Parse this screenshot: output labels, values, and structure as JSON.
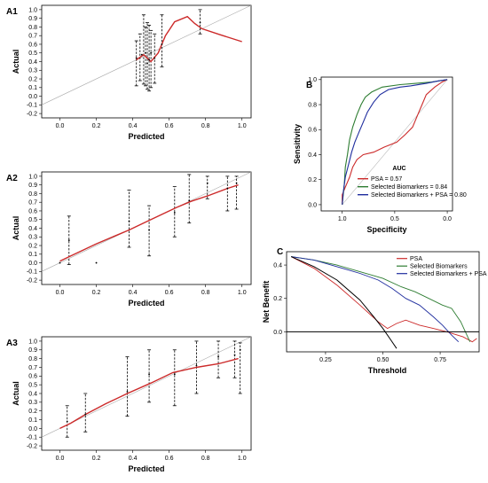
{
  "chart_data": [
    {
      "id": "A1",
      "type": "line",
      "panel_label": "A1",
      "xlabel": "Predicted",
      "ylabel": "Actual",
      "xlim": [
        -0.1,
        1.05
      ],
      "ylim": [
        -0.25,
        1.05
      ],
      "xticks": [
        "0.0",
        "0.2",
        "0.4",
        "0.6",
        "0.8",
        "1.0"
      ],
      "yticks": [
        "-0.2",
        "-0.1",
        "0.0",
        "0.1",
        "0.2",
        "0.3",
        "0.4",
        "0.5",
        "0.6",
        "0.7",
        "0.8",
        "0.9",
        "1.0"
      ],
      "reference_line": [
        [
          -0.1,
          -0.1
        ],
        [
          1.05,
          1.05
        ]
      ],
      "calibration_curve": [
        [
          0.42,
          0.42
        ],
        [
          0.46,
          0.48
        ],
        [
          0.5,
          0.4
        ],
        [
          0.54,
          0.5
        ],
        [
          0.58,
          0.7
        ],
        [
          0.63,
          0.86
        ],
        [
          0.7,
          0.92
        ],
        [
          0.74,
          0.84
        ],
        [
          0.78,
          0.78
        ],
        [
          0.88,
          0.71
        ],
        [
          1.0,
          0.63
        ]
      ],
      "points": [
        [
          0.42,
          0.44
        ],
        [
          0.45,
          0.48
        ],
        [
          0.47,
          0.5
        ],
        [
          0.48,
          0.38
        ],
        [
          0.49,
          0.42
        ],
        [
          0.5,
          0.5
        ],
        [
          0.52,
          0.44
        ],
        [
          0.56,
          0.6
        ],
        [
          0.77,
          0.85
        ]
      ],
      "error_bars": [
        [
          0.42,
          0.12,
          0.64
        ],
        [
          0.44,
          0.18,
          0.72
        ],
        [
          0.46,
          0.14,
          0.94
        ],
        [
          0.47,
          0.12,
          0.8
        ],
        [
          0.48,
          0.08,
          0.85
        ],
        [
          0.49,
          0.06,
          0.82
        ],
        [
          0.5,
          0.1,
          0.76
        ],
        [
          0.52,
          0.15,
          0.72
        ],
        [
          0.56,
          0.34,
          0.94
        ],
        [
          0.77,
          0.72,
          1.0
        ]
      ]
    },
    {
      "id": "A2",
      "type": "line",
      "panel_label": "A2",
      "xlabel": "Predicted",
      "ylabel": "Actual",
      "xlim": [
        -0.1,
        1.05
      ],
      "ylim": [
        -0.25,
        1.05
      ],
      "xticks": [
        "0.0",
        "0.2",
        "0.4",
        "0.6",
        "0.8",
        "1.0"
      ],
      "yticks": [
        "-0.2",
        "-0.1",
        "0.0",
        "0.1",
        "0.2",
        "0.3",
        "0.4",
        "0.5",
        "0.6",
        "0.7",
        "0.8",
        "0.9",
        "1.0"
      ],
      "reference_line": [
        [
          -0.1,
          -0.1
        ],
        [
          1.05,
          1.05
        ]
      ],
      "calibration_curve": [
        [
          0.0,
          0.02
        ],
        [
          0.06,
          0.08
        ],
        [
          0.2,
          0.22
        ],
        [
          0.38,
          0.38
        ],
        [
          0.5,
          0.5
        ],
        [
          0.64,
          0.64
        ],
        [
          0.72,
          0.71
        ],
        [
          0.82,
          0.78
        ],
        [
          0.92,
          0.86
        ],
        [
          0.98,
          0.9
        ]
      ],
      "points": [
        [
          0.0,
          0.0
        ],
        [
          0.05,
          0.26
        ],
        [
          0.2,
          0.0
        ],
        [
          0.38,
          0.48
        ],
        [
          0.49,
          0.38
        ],
        [
          0.63,
          0.58
        ],
        [
          0.71,
          0.72
        ],
        [
          0.81,
          0.92
        ],
        [
          0.92,
          0.86
        ],
        [
          0.97,
          0.92
        ]
      ],
      "error_bars": [
        [
          0.05,
          -0.02,
          0.54
        ],
        [
          0.38,
          0.18,
          0.84
        ],
        [
          0.49,
          0.08,
          0.66
        ],
        [
          0.63,
          0.3,
          0.88
        ],
        [
          0.71,
          0.46,
          1.02
        ],
        [
          0.81,
          0.74,
          1.0
        ],
        [
          0.92,
          0.6,
          1.0
        ],
        [
          0.97,
          0.62,
          1.0
        ]
      ]
    },
    {
      "id": "A3",
      "type": "line",
      "panel_label": "A3",
      "xlabel": "Predicted",
      "ylabel": "Actual",
      "xlim": [
        -0.1,
        1.05
      ],
      "ylim": [
        -0.25,
        1.05
      ],
      "xticks": [
        "0.0",
        "0.2",
        "0.4",
        "0.6",
        "0.8",
        "1.0"
      ],
      "yticks": [
        "-0.2",
        "-0.1",
        "0.0",
        "0.1",
        "0.2",
        "0.3",
        "0.4",
        "0.5",
        "0.6",
        "0.7",
        "0.8",
        "0.9",
        "1.0"
      ],
      "reference_line": [
        [
          -0.1,
          -0.1
        ],
        [
          1.05,
          1.05
        ]
      ],
      "calibration_curve": [
        [
          0.0,
          0.0
        ],
        [
          0.06,
          0.06
        ],
        [
          0.14,
          0.16
        ],
        [
          0.25,
          0.28
        ],
        [
          0.37,
          0.4
        ],
        [
          0.5,
          0.52
        ],
        [
          0.62,
          0.64
        ],
        [
          0.75,
          0.7
        ],
        [
          0.87,
          0.74
        ],
        [
          0.98,
          0.8
        ]
      ],
      "points": [
        [
          0.04,
          0.08
        ],
        [
          0.14,
          0.16
        ],
        [
          0.37,
          0.42
        ],
        [
          0.49,
          0.62
        ],
        [
          0.63,
          0.62
        ],
        [
          0.75,
          0.72
        ],
        [
          0.87,
          0.82
        ],
        [
          0.96,
          0.84
        ],
        [
          0.99,
          0.9
        ]
      ],
      "error_bars": [
        [
          0.04,
          -0.1,
          0.26
        ],
        [
          0.14,
          -0.04,
          0.4
        ],
        [
          0.37,
          0.14,
          0.82
        ],
        [
          0.49,
          0.3,
          0.9
        ],
        [
          0.63,
          0.26,
          0.9
        ],
        [
          0.75,
          0.4,
          1.0
        ],
        [
          0.87,
          0.58,
          1.0
        ],
        [
          0.96,
          0.58,
          1.0
        ],
        [
          0.99,
          0.4,
          0.98
        ]
      ]
    },
    {
      "id": "B",
      "type": "line",
      "panel_label": "B",
      "xlabel": "Specificity",
      "ylabel": "Sensitivity",
      "xlim": [
        1.2,
        -0.05
      ],
      "ylim": [
        -0.05,
        1.02
      ],
      "xticks": [
        "1.0",
        "0.5",
        "0.0"
      ],
      "yticks": [
        "0.0",
        "0.2",
        "0.4",
        "0.6",
        "0.8",
        "1.0"
      ],
      "reference_line": [
        [
          1.0,
          0.0
        ],
        [
          0.0,
          1.0
        ]
      ],
      "legend": {
        "title": "AUC",
        "placement": "bottom-right",
        "entries": [
          "PSA = 0.57",
          "Selected Biomarkers = 0.84",
          "Selected Biomarkers + PSA = 0.80"
        ]
      },
      "series": [
        {
          "name": "PSA = 0.57",
          "color": "#cc2a2a",
          "points": [
            [
              1.0,
              0.0
            ],
            [
              1.0,
              0.08
            ],
            [
              0.97,
              0.14
            ],
            [
              0.93,
              0.22
            ],
            [
              0.9,
              0.3
            ],
            [
              0.86,
              0.36
            ],
            [
              0.8,
              0.4
            ],
            [
              0.7,
              0.42
            ],
            [
              0.6,
              0.46
            ],
            [
              0.48,
              0.5
            ],
            [
              0.4,
              0.56
            ],
            [
              0.33,
              0.62
            ],
            [
              0.28,
              0.72
            ],
            [
              0.24,
              0.8
            ],
            [
              0.2,
              0.88
            ],
            [
              0.12,
              0.94
            ],
            [
              0.05,
              0.98
            ],
            [
              0.0,
              1.0
            ]
          ]
        },
        {
          "name": "Selected Biomarkers = 0.84",
          "color": "#2e7d32",
          "points": [
            [
              1.0,
              0.0
            ],
            [
              0.98,
              0.16
            ],
            [
              0.97,
              0.3
            ],
            [
              0.95,
              0.4
            ],
            [
              0.93,
              0.52
            ],
            [
              0.9,
              0.62
            ],
            [
              0.86,
              0.72
            ],
            [
              0.82,
              0.8
            ],
            [
              0.78,
              0.86
            ],
            [
              0.72,
              0.9
            ],
            [
              0.62,
              0.94
            ],
            [
              0.45,
              0.96
            ],
            [
              0.3,
              0.97
            ],
            [
              0.15,
              0.98
            ],
            [
              0.0,
              1.0
            ]
          ]
        },
        {
          "name": "Selected Biomarkers + PSA = 0.80",
          "color": "#1f2d9e",
          "points": [
            [
              1.0,
              0.0
            ],
            [
              0.99,
              0.1
            ],
            [
              0.97,
              0.22
            ],
            [
              0.94,
              0.32
            ],
            [
              0.91,
              0.42
            ],
            [
              0.88,
              0.5
            ],
            [
              0.84,
              0.58
            ],
            [
              0.8,
              0.66
            ],
            [
              0.76,
              0.74
            ],
            [
              0.7,
              0.82
            ],
            [
              0.64,
              0.88
            ],
            [
              0.56,
              0.92
            ],
            [
              0.45,
              0.94
            ],
            [
              0.35,
              0.95
            ],
            [
              0.2,
              0.97
            ],
            [
              0.08,
              0.99
            ],
            [
              0.0,
              1.0
            ]
          ]
        }
      ]
    },
    {
      "id": "C",
      "type": "line",
      "panel_label": "C",
      "xlabel": "Threshold",
      "ylabel": "Net Benefit",
      "xlim": [
        0.08,
        0.92
      ],
      "ylim": [
        -0.12,
        0.48
      ],
      "xticks": [
        "0.25",
        "0.50",
        "0.75"
      ],
      "yticks": [
        "0.0",
        "0.2",
        "0.4"
      ],
      "legend": {
        "placement": "top-right",
        "entries": [
          "PSA",
          "Selected Biomarkers",
          "Selected Biomarkers + PSA"
        ]
      },
      "series": [
        {
          "name": "PSA",
          "color": "#cc2a2a",
          "points": [
            [
              0.1,
              0.45
            ],
            [
              0.2,
              0.38
            ],
            [
              0.3,
              0.28
            ],
            [
              0.4,
              0.16
            ],
            [
              0.48,
              0.06
            ],
            [
              0.52,
              0.02
            ],
            [
              0.56,
              0.05
            ],
            [
              0.6,
              0.07
            ],
            [
              0.66,
              0.04
            ],
            [
              0.72,
              0.02
            ],
            [
              0.78,
              0.0
            ],
            [
              0.85,
              -0.03
            ],
            [
              0.89,
              -0.06
            ],
            [
              0.91,
              -0.04
            ]
          ]
        },
        {
          "name": "Selected Biomarkers",
          "color": "#2e7d32",
          "points": [
            [
              0.1,
              0.45
            ],
            [
              0.2,
              0.43
            ],
            [
              0.3,
              0.4
            ],
            [
              0.4,
              0.36
            ],
            [
              0.5,
              0.32
            ],
            [
              0.58,
              0.27
            ],
            [
              0.64,
              0.24
            ],
            [
              0.7,
              0.2
            ],
            [
              0.76,
              0.16
            ],
            [
              0.8,
              0.14
            ],
            [
              0.84,
              0.06
            ],
            [
              0.86,
              0.0
            ],
            [
              0.88,
              -0.06
            ]
          ]
        },
        {
          "name": "Selected Biomarkers + PSA",
          "color": "#1f2d9e",
          "points": [
            [
              0.1,
              0.45
            ],
            [
              0.2,
              0.43
            ],
            [
              0.3,
              0.39
            ],
            [
              0.4,
              0.35
            ],
            [
              0.48,
              0.31
            ],
            [
              0.54,
              0.26
            ],
            [
              0.6,
              0.2
            ],
            [
              0.66,
              0.16
            ],
            [
              0.72,
              0.09
            ],
            [
              0.76,
              0.04
            ],
            [
              0.8,
              -0.02
            ],
            [
              0.83,
              -0.06
            ]
          ]
        },
        {
          "name": "",
          "color": "#000000",
          "points": [
            [
              0.1,
              0.45
            ],
            [
              0.2,
              0.39
            ],
            [
              0.3,
              0.31
            ],
            [
              0.4,
              0.19
            ],
            [
              0.46,
              0.09
            ],
            [
              0.5,
              0.02
            ],
            [
              0.53,
              -0.04
            ],
            [
              0.56,
              -0.1
            ]
          ]
        },
        {
          "name": "",
          "color": "#000000",
          "points": [
            [
              0.08,
              0.0
            ],
            [
              0.92,
              0.0
            ]
          ]
        }
      ]
    }
  ]
}
